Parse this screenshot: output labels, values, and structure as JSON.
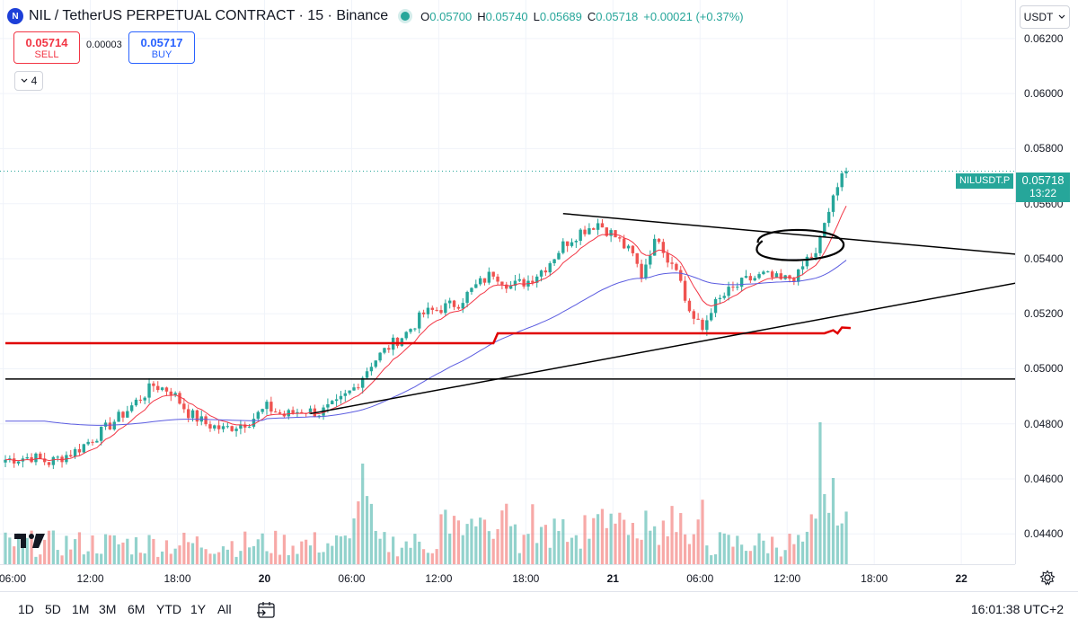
{
  "header": {
    "title": "NIL / TetherUS PERPETUAL CONTRACT · 15 · Binance",
    "logo_text": "N",
    "ohlc": [
      {
        "key": "O",
        "value": "0.05700"
      },
      {
        "key": "H",
        "value": "0.05740"
      },
      {
        "key": "L",
        "value": "0.05689"
      },
      {
        "key": "C",
        "value": "0.05718"
      }
    ],
    "change": "+0.00021 (+0.37%)"
  },
  "trade": {
    "sell_price": "0.05714",
    "sell_label": "SELL",
    "spread": "0.00003",
    "buy_price": "0.05717",
    "buy_label": "BUY"
  },
  "indicators_toggle": "4",
  "currency": "USDT",
  "last_price": {
    "symbol": "NILUSDT.P",
    "price": "0.05718",
    "countdown": "13:22"
  },
  "range_buttons": [
    "1D",
    "5D",
    "1M",
    "3M",
    "6M",
    "YTD",
    "1Y",
    "All"
  ],
  "clock": "16:01:38 UTC+2",
  "colors": {
    "up": "#26a69a",
    "down": "#ef5350",
    "ema_fast": "#f23645",
    "ema_slow": "#5b5ce0",
    "support": "#e00000",
    "drawing": "#000000"
  },
  "icons": {
    "settings": "gear-icon",
    "goto": "calendar-goto-icon",
    "logo": "tradingview-logo"
  },
  "chart_data": {
    "type": "candlestick",
    "title": "NIL / TetherUS PERPETUAL CONTRACT · 15 · Binance",
    "interval": "15",
    "y_ticks": [
      "0.06200",
      "0.06000",
      "0.05800",
      "0.05600",
      "0.05400",
      "0.05200",
      "0.05000",
      "0.04800",
      "0.04600",
      "0.04400"
    ],
    "x_ticks": [
      {
        "label": "06:00",
        "bold": false
      },
      {
        "label": "12:00",
        "bold": false
      },
      {
        "label": "18:00",
        "bold": false
      },
      {
        "label": "20",
        "bold": true
      },
      {
        "label": "06:00",
        "bold": false
      },
      {
        "label": "12:00",
        "bold": false
      },
      {
        "label": "18:00",
        "bold": false
      },
      {
        "label": "21",
        "bold": true
      },
      {
        "label": "06:00",
        "bold": false
      },
      {
        "label": "12:00",
        "bold": false
      },
      {
        "label": "18:00",
        "bold": false
      },
      {
        "label": "22",
        "bold": true
      }
    ],
    "close_series_anchors": [
      [
        0,
        0.0467
      ],
      [
        6,
        0.0468
      ],
      [
        10,
        0.0466
      ],
      [
        16,
        0.047
      ],
      [
        22,
        0.0477
      ],
      [
        28,
        0.0485
      ],
      [
        34,
        0.0494
      ],
      [
        38,
        0.0492
      ],
      [
        42,
        0.0484
      ],
      [
        46,
        0.048
      ],
      [
        50,
        0.0478
      ],
      [
        56,
        0.0481
      ],
      [
        60,
        0.0486
      ],
      [
        64,
        0.0483
      ],
      [
        68,
        0.0485
      ],
      [
        72,
        0.0484
      ],
      [
        76,
        0.0487
      ],
      [
        80,
        0.0493
      ],
      [
        84,
        0.0502
      ],
      [
        88,
        0.0508
      ],
      [
        92,
        0.0513
      ],
      [
        96,
        0.052
      ],
      [
        100,
        0.0522
      ],
      [
        104,
        0.0524
      ],
      [
        108,
        0.053
      ],
      [
        112,
        0.0535
      ],
      [
        116,
        0.053
      ],
      [
        120,
        0.0532
      ],
      [
        124,
        0.0537
      ],
      [
        128,
        0.0545
      ],
      [
        132,
        0.055
      ],
      [
        136,
        0.0553
      ],
      [
        140,
        0.0548
      ],
      [
        144,
        0.0541
      ],
      [
        146,
        0.0534
      ],
      [
        148,
        0.0543
      ],
      [
        150,
        0.0548
      ],
      [
        152,
        0.054
      ],
      [
        154,
        0.0538
      ],
      [
        156,
        0.0525
      ],
      [
        158,
        0.0518
      ],
      [
        160,
        0.0514
      ],
      [
        162,
        0.0522
      ],
      [
        166,
        0.0528
      ],
      [
        170,
        0.0532
      ],
      [
        174,
        0.0534
      ],
      [
        178,
        0.0532
      ],
      [
        182,
        0.0534
      ],
      [
        184,
        0.054
      ],
      [
        186,
        0.0542
      ],
      [
        187,
        0.0548
      ],
      [
        188,
        0.0553
      ],
      [
        189,
        0.0557
      ],
      [
        190,
        0.0563
      ],
      [
        191,
        0.0566
      ],
      [
        192,
        0.0571
      ],
      [
        193,
        0.05718
      ]
    ],
    "candle_count": 194,
    "ema_fast_period_visual": "red moving average",
    "ema_slow_period_visual": "blue moving average",
    "support_line": {
      "segments": [
        [
          0,
          0.05093
        ],
        [
          112,
          0.05093
        ],
        [
          113,
          0.05129
        ],
        [
          188,
          0.05129
        ],
        [
          190,
          0.0514
        ],
        [
          191,
          0.05129
        ],
        [
          192,
          0.0515
        ],
        [
          194,
          0.05148
        ]
      ]
    },
    "trend_lines": [
      {
        "from": [
          70,
          0.04837
        ],
        "to": [
          256,
          0.05382
        ]
      },
      {
        "from": [
          128,
          0.05564
        ],
        "to": [
          256,
          0.05382
        ]
      },
      {
        "from": [
          0,
          0.04963
        ],
        "to": [
          320,
          0.04963
        ]
      }
    ],
    "volume": {
      "max_index": 187,
      "peak_bars": [
        82,
        187,
        190
      ]
    },
    "ylim": [
      0.0429,
      0.0634
    ],
    "legend": "none",
    "grid": true
  }
}
